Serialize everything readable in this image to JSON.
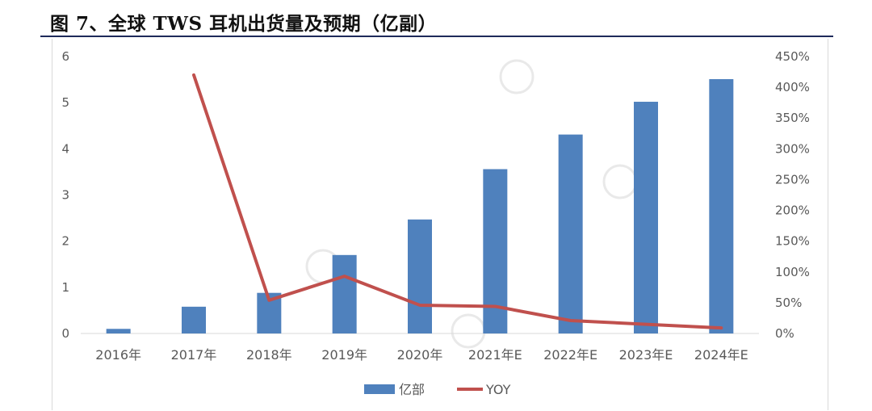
{
  "figure": {
    "title": "图 7、全球 TWS 耳机出货量及预期（亿副）"
  },
  "chart_data": {
    "type": "bar+line",
    "categories": [
      "2016年",
      "2017年",
      "2018年",
      "2019年",
      "2020年",
      "2021年E",
      "2022年E",
      "2023年E",
      "2024年E"
    ],
    "series": [
      {
        "name": "亿部",
        "type": "bar",
        "axis": "left",
        "color": "#4f81bd",
        "values": [
          0.1,
          0.58,
          0.88,
          1.7,
          2.47,
          3.56,
          4.31,
          5.02,
          5.51
        ]
      },
      {
        "name": "YOY",
        "type": "line",
        "axis": "right",
        "color": "#c0504d",
        "values": [
          null,
          4.2,
          0.54,
          0.93,
          0.46,
          0.44,
          0.21,
          0.15,
          0.09
        ]
      }
    ],
    "y_left": {
      "min": 0,
      "max": 6,
      "ticks": [
        "0",
        "1",
        "2",
        "3",
        "4",
        "5",
        "6"
      ]
    },
    "y_right": {
      "min": 0,
      "max": 4.5,
      "ticks": [
        "0%",
        "50%",
        "100%",
        "150%",
        "200%",
        "250%",
        "300%",
        "350%",
        "400%",
        "450%"
      ]
    },
    "legend": {
      "position": "bottom",
      "items": [
        "亿部",
        "YOY"
      ]
    },
    "grid": false
  }
}
